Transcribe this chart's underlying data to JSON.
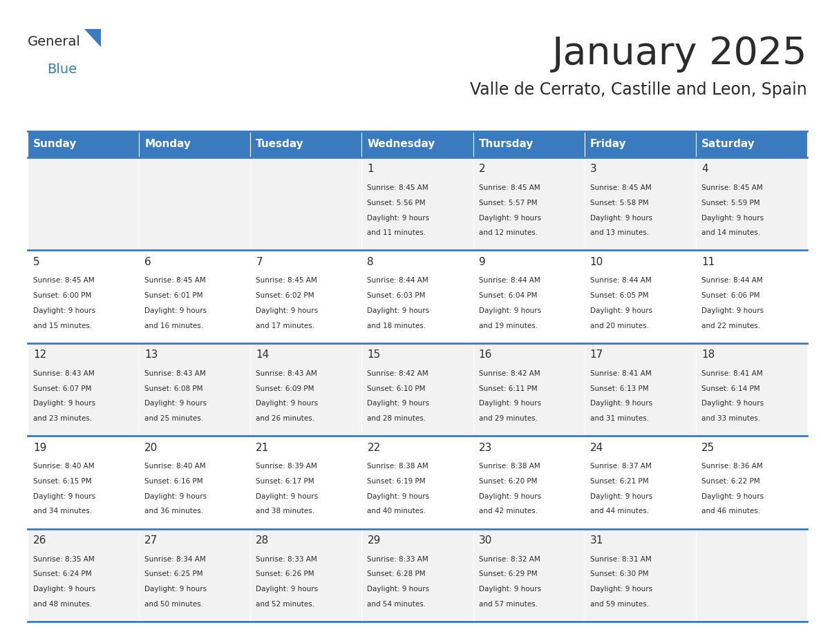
{
  "title": "January 2025",
  "subtitle": "Valle de Cerrato, Castille and Leon, Spain",
  "header_color": "#3a7abf",
  "header_text_color": "#ffffff",
  "cell_bg_color": "#f2f2f2",
  "cell_alt_bg_color": "#ffffff",
  "border_color": "#3a7abf",
  "day_headers": [
    "Sunday",
    "Monday",
    "Tuesday",
    "Wednesday",
    "Thursday",
    "Friday",
    "Saturday"
  ],
  "days": [
    {
      "day": 1,
      "col": 3,
      "row": 0,
      "sunrise": "8:45 AM",
      "sunset": "5:56 PM",
      "daylight_hours": 9,
      "daylight_minutes": 11
    },
    {
      "day": 2,
      "col": 4,
      "row": 0,
      "sunrise": "8:45 AM",
      "sunset": "5:57 PM",
      "daylight_hours": 9,
      "daylight_minutes": 12
    },
    {
      "day": 3,
      "col": 5,
      "row": 0,
      "sunrise": "8:45 AM",
      "sunset": "5:58 PM",
      "daylight_hours": 9,
      "daylight_minutes": 13
    },
    {
      "day": 4,
      "col": 6,
      "row": 0,
      "sunrise": "8:45 AM",
      "sunset": "5:59 PM",
      "daylight_hours": 9,
      "daylight_minutes": 14
    },
    {
      "day": 5,
      "col": 0,
      "row": 1,
      "sunrise": "8:45 AM",
      "sunset": "6:00 PM",
      "daylight_hours": 9,
      "daylight_minutes": 15
    },
    {
      "day": 6,
      "col": 1,
      "row": 1,
      "sunrise": "8:45 AM",
      "sunset": "6:01 PM",
      "daylight_hours": 9,
      "daylight_minutes": 16
    },
    {
      "day": 7,
      "col": 2,
      "row": 1,
      "sunrise": "8:45 AM",
      "sunset": "6:02 PM",
      "daylight_hours": 9,
      "daylight_minutes": 17
    },
    {
      "day": 8,
      "col": 3,
      "row": 1,
      "sunrise": "8:44 AM",
      "sunset": "6:03 PM",
      "daylight_hours": 9,
      "daylight_minutes": 18
    },
    {
      "day": 9,
      "col": 4,
      "row": 1,
      "sunrise": "8:44 AM",
      "sunset": "6:04 PM",
      "daylight_hours": 9,
      "daylight_minutes": 19
    },
    {
      "day": 10,
      "col": 5,
      "row": 1,
      "sunrise": "8:44 AM",
      "sunset": "6:05 PM",
      "daylight_hours": 9,
      "daylight_minutes": 20
    },
    {
      "day": 11,
      "col": 6,
      "row": 1,
      "sunrise": "8:44 AM",
      "sunset": "6:06 PM",
      "daylight_hours": 9,
      "daylight_minutes": 22
    },
    {
      "day": 12,
      "col": 0,
      "row": 2,
      "sunrise": "8:43 AM",
      "sunset": "6:07 PM",
      "daylight_hours": 9,
      "daylight_minutes": 23
    },
    {
      "day": 13,
      "col": 1,
      "row": 2,
      "sunrise": "8:43 AM",
      "sunset": "6:08 PM",
      "daylight_hours": 9,
      "daylight_minutes": 25
    },
    {
      "day": 14,
      "col": 2,
      "row": 2,
      "sunrise": "8:43 AM",
      "sunset": "6:09 PM",
      "daylight_hours": 9,
      "daylight_minutes": 26
    },
    {
      "day": 15,
      "col": 3,
      "row": 2,
      "sunrise": "8:42 AM",
      "sunset": "6:10 PM",
      "daylight_hours": 9,
      "daylight_minutes": 28
    },
    {
      "day": 16,
      "col": 4,
      "row": 2,
      "sunrise": "8:42 AM",
      "sunset": "6:11 PM",
      "daylight_hours": 9,
      "daylight_minutes": 29
    },
    {
      "day": 17,
      "col": 5,
      "row": 2,
      "sunrise": "8:41 AM",
      "sunset": "6:13 PM",
      "daylight_hours": 9,
      "daylight_minutes": 31
    },
    {
      "day": 18,
      "col": 6,
      "row": 2,
      "sunrise": "8:41 AM",
      "sunset": "6:14 PM",
      "daylight_hours": 9,
      "daylight_minutes": 33
    },
    {
      "day": 19,
      "col": 0,
      "row": 3,
      "sunrise": "8:40 AM",
      "sunset": "6:15 PM",
      "daylight_hours": 9,
      "daylight_minutes": 34
    },
    {
      "day": 20,
      "col": 1,
      "row": 3,
      "sunrise": "8:40 AM",
      "sunset": "6:16 PM",
      "daylight_hours": 9,
      "daylight_minutes": 36
    },
    {
      "day": 21,
      "col": 2,
      "row": 3,
      "sunrise": "8:39 AM",
      "sunset": "6:17 PM",
      "daylight_hours": 9,
      "daylight_minutes": 38
    },
    {
      "day": 22,
      "col": 3,
      "row": 3,
      "sunrise": "8:38 AM",
      "sunset": "6:19 PM",
      "daylight_hours": 9,
      "daylight_minutes": 40
    },
    {
      "day": 23,
      "col": 4,
      "row": 3,
      "sunrise": "8:38 AM",
      "sunset": "6:20 PM",
      "daylight_hours": 9,
      "daylight_minutes": 42
    },
    {
      "day": 24,
      "col": 5,
      "row": 3,
      "sunrise": "8:37 AM",
      "sunset": "6:21 PM",
      "daylight_hours": 9,
      "daylight_minutes": 44
    },
    {
      "day": 25,
      "col": 6,
      "row": 3,
      "sunrise": "8:36 AM",
      "sunset": "6:22 PM",
      "daylight_hours": 9,
      "daylight_minutes": 46
    },
    {
      "day": 26,
      "col": 0,
      "row": 4,
      "sunrise": "8:35 AM",
      "sunset": "6:24 PM",
      "daylight_hours": 9,
      "daylight_minutes": 48
    },
    {
      "day": 27,
      "col": 1,
      "row": 4,
      "sunrise": "8:34 AM",
      "sunset": "6:25 PM",
      "daylight_hours": 9,
      "daylight_minutes": 50
    },
    {
      "day": 28,
      "col": 2,
      "row": 4,
      "sunrise": "8:33 AM",
      "sunset": "6:26 PM",
      "daylight_hours": 9,
      "daylight_minutes": 52
    },
    {
      "day": 29,
      "col": 3,
      "row": 4,
      "sunrise": "8:33 AM",
      "sunset": "6:28 PM",
      "daylight_hours": 9,
      "daylight_minutes": 54
    },
    {
      "day": 30,
      "col": 4,
      "row": 4,
      "sunrise": "8:32 AM",
      "sunset": "6:29 PM",
      "daylight_hours": 9,
      "daylight_minutes": 57
    },
    {
      "day": 31,
      "col": 5,
      "row": 4,
      "sunrise": "8:31 AM",
      "sunset": "6:30 PM",
      "daylight_hours": 9,
      "daylight_minutes": 59
    }
  ],
  "num_rows": 5,
  "num_cols": 7,
  "logo_text_general": "General",
  "logo_text_blue": "Blue",
  "title_fontsize": 40,
  "subtitle_fontsize": 17,
  "header_fontsize": 11,
  "day_num_fontsize": 11,
  "cell_text_fontsize": 7.5
}
